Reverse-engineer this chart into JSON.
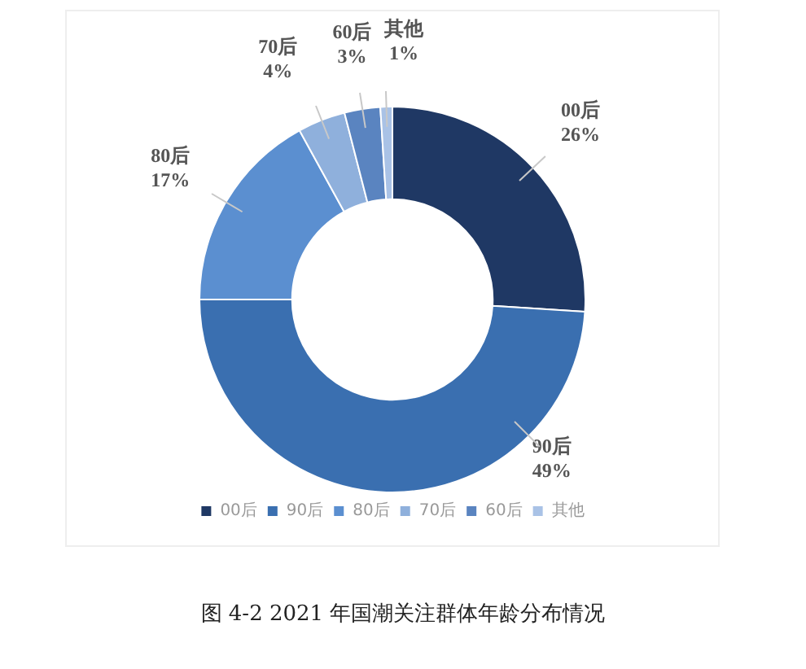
{
  "chart_data": {
    "type": "donut",
    "categories": [
      "00后",
      "90后",
      "80后",
      "70后",
      "60后",
      "其他"
    ],
    "values": [
      26,
      49,
      17,
      4,
      3,
      1
    ],
    "value_labels": [
      "26%",
      "49%",
      "17%",
      "4%",
      "3%",
      "1%"
    ],
    "colors": [
      "#1f3864",
      "#3a6fb0",
      "#5b8fd0",
      "#8fb0dc",
      "#5a84c0",
      "#a9c2e6"
    ],
    "legend": "bottom",
    "annotations": [
      "图 4-2    2021 年国潮关注群体年龄分布情况"
    ]
  }
}
